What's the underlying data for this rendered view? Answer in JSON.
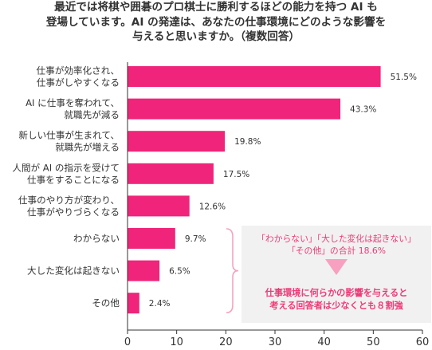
{
  "title": {
    "line1": "最近では将棋や囲碁のプロ棋士に勝利するほどの能力を持つ AI も",
    "line2": "登場しています。AI の発達は、あなたの仕事環境にどのような影響を",
    "line3": "与えると思いますか。（複数回答）"
  },
  "note": {
    "line1": "「わからない」「大した変化は起きない」",
    "line2": "「その他」の合計 18.6%",
    "line3": "仕事環境に何らかの影響を与えると",
    "line4": "考える回答者は少なくとも８割強"
  },
  "colors": {
    "bar": "#f0247a",
    "note_text": "#ee3a78",
    "brace": "#f5a3bd",
    "note_bg": "#f1f1f1"
  },
  "chart_data": {
    "type": "bar",
    "orientation": "horizontal",
    "categories": [
      [
        "仕事が効率化され、",
        "仕事がしやすくなる"
      ],
      [
        "AI に仕事を奪われて、",
        "就職先が減る"
      ],
      [
        "新しい仕事が生まれて、",
        "就職先が増える"
      ],
      [
        "人間が AI の指示を受けて",
        "仕事をすることになる"
      ],
      [
        "仕事のやり方が変わり、",
        "仕事がやりづらくなる"
      ],
      [
        "わからない"
      ],
      [
        "大した変化は起きない"
      ],
      [
        "その他"
      ]
    ],
    "values": [
      51.5,
      43.3,
      19.8,
      17.5,
      12.6,
      9.7,
      6.5,
      2.4
    ],
    "value_labels": [
      "51.5%",
      "43.3%",
      "19.8%",
      "17.5%",
      "12.6%",
      "9.7%",
      "6.5%",
      "2.4%"
    ],
    "xlim": [
      0,
      60
    ],
    "xticks": [
      0,
      10,
      20,
      30,
      40,
      50,
      60
    ],
    "grid": false
  }
}
